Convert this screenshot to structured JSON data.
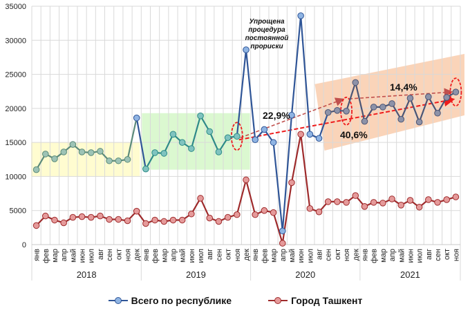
{
  "chart_data": {
    "type": "line",
    "title": "",
    "xlabel": "",
    "ylabel": "",
    "ylim": [
      0,
      35000
    ],
    "yticks": [
      "0",
      "5000",
      "10000",
      "15000",
      "20000",
      "25000",
      "30000",
      "35000"
    ],
    "grid": true,
    "legend_position": "bottom",
    "years": [
      {
        "label": "2018",
        "months": [
          "янв",
          "фев",
          "мар",
          "апр",
          "май",
          "июн",
          "июл",
          "авг",
          "сен",
          "окт",
          "ноя",
          "дек"
        ]
      },
      {
        "label": "2019",
        "months": [
          "янв",
          "фев",
          "мар",
          "апр",
          "май",
          "июн",
          "июл",
          "авг",
          "сен",
          "окт",
          "ноя",
          "дек"
        ]
      },
      {
        "label": "2020",
        "months": [
          "янв",
          "фев",
          "мар",
          "апр",
          "май",
          "июн",
          "июл",
          "авг",
          "сен",
          "окт",
          "ноя",
          "дек"
        ]
      },
      {
        "label": "2021",
        "months": [
          "янв",
          "фев",
          "мар",
          "апр",
          "май",
          "июн",
          "июл",
          "авг",
          "сен",
          "окт",
          "ноя"
        ]
      }
    ],
    "series": [
      {
        "name": "Всего по республике",
        "color": "#2f5597",
        "marker_color": "#8fb4e3",
        "values": [
          11000,
          13300,
          12600,
          13600,
          14700,
          13600,
          13500,
          13700,
          12300,
          12300,
          12500,
          18600,
          11100,
          13500,
          13400,
          16200,
          15000,
          14100,
          18900,
          16600,
          13600,
          15700,
          15900,
          28600,
          15400,
          16900,
          15000,
          2000,
          19000,
          33600,
          16200,
          15600,
          19400,
          19700,
          19600,
          23800,
          18100,
          20200,
          20200,
          20700,
          18400,
          21500,
          18000,
          21700,
          19300,
          21600,
          22400
        ]
      },
      {
        "name": "Город Ташкент",
        "color": "#9e2a2b",
        "marker_color": "#e59a9a",
        "values": [
          2800,
          4200,
          3600,
          3200,
          4000,
          4100,
          4000,
          4200,
          3700,
          3700,
          3500,
          4900,
          3100,
          3600,
          3400,
          3600,
          3600,
          4500,
          6800,
          3900,
          3400,
          4000,
          4400,
          9500,
          4400,
          5000,
          4700,
          200,
          9100,
          16200,
          5300,
          4800,
          6300,
          6300,
          6200,
          7200,
          5600,
          6200,
          6100,
          6700,
          5800,
          6500,
          5500,
          6600,
          6200,
          6600,
          7000
        ]
      }
    ],
    "highlight_bands": [
      {
        "from_index": 0,
        "to_index": 11,
        "ymin": 10000,
        "ymax": 15000,
        "color": "#fffbc8",
        "line_color": "#5b8a7a",
        "marker_color": "#9dc3b5"
      },
      {
        "from_index": 12,
        "to_index": 23,
        "ymin": 11000,
        "ymax": 19300,
        "color": "#d5f7c8",
        "line_color": "#2e8a88",
        "marker_color": "#7fc3bf"
      },
      {
        "from_index": 32,
        "to_index": 46,
        "trend": true,
        "color": "#f9c9a8",
        "line_color": "#4b5575",
        "marker_color": "#8d92a8"
      }
    ],
    "annotations": [
      {
        "text_lines": [
          "Упрощена",
          "процедура",
          "постоянной",
          "прориски"
        ]
      },
      {
        "text": "22,9%",
        "from_index": 22,
        "to_index": 35
      },
      {
        "text": "40,6%",
        "from_index": 22,
        "to_index": 46
      },
      {
        "text": "14,4%",
        "from_index": 35,
        "to_index": 46
      }
    ]
  }
}
